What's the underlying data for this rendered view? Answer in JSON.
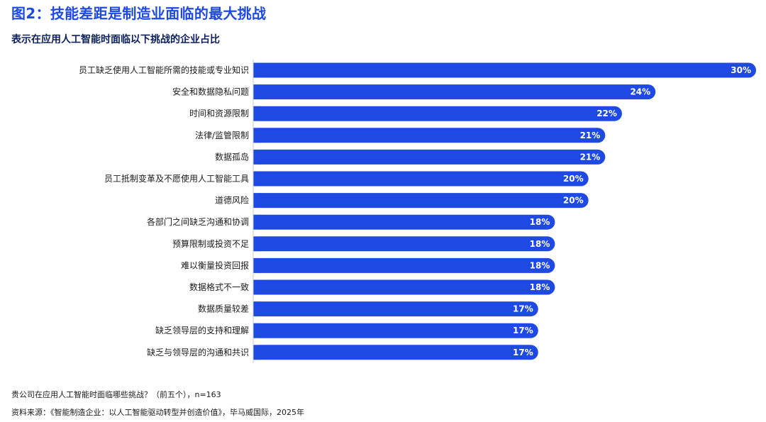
{
  "title": "图2：技能差距是制造业面临的最大挑战",
  "subtitle": "表示在应用人工智能时面临以下挑战的企业占比",
  "colors": {
    "title": "#1e49e2",
    "bar": "#1e49e2",
    "bar_label": "#ffffff"
  },
  "chart_data": {
    "type": "bar",
    "orientation": "horizontal",
    "value_unit": "%",
    "xlim": [
      0,
      30
    ],
    "grid": false,
    "categories": [
      "员工缺乏使用人工智能所需的技能或专业知识",
      "安全和数据隐私问题",
      "时间和资源限制",
      "法律/监管限制",
      "数据孤岛",
      "员工抵制变革及不愿使用人工智能工具",
      "道德风险",
      "各部门之间缺乏沟通和协调",
      "预算限制或投资不足",
      "难以衡量投资回报",
      "数据格式不一致",
      "数据质量较差",
      "缺乏领导层的支持和理解",
      "缺乏与领导层的沟通和共识"
    ],
    "values": [
      30,
      24,
      22,
      21,
      21,
      20,
      20,
      18,
      18,
      18,
      18,
      17,
      17,
      17
    ],
    "data_labels": [
      "30%",
      "24%",
      "22%",
      "21%",
      "21%",
      "20%",
      "20%",
      "18%",
      "18%",
      "18%",
      "18%",
      "17%",
      "17%",
      "17%"
    ]
  },
  "footnotes": {
    "question": "贵公司在应用人工智能时面临哪些挑战？（前五个），n=163",
    "source": "资料来源：《智能制造企业：以人工智能驱动转型并创造价值》，毕马威国际，2025年"
  }
}
